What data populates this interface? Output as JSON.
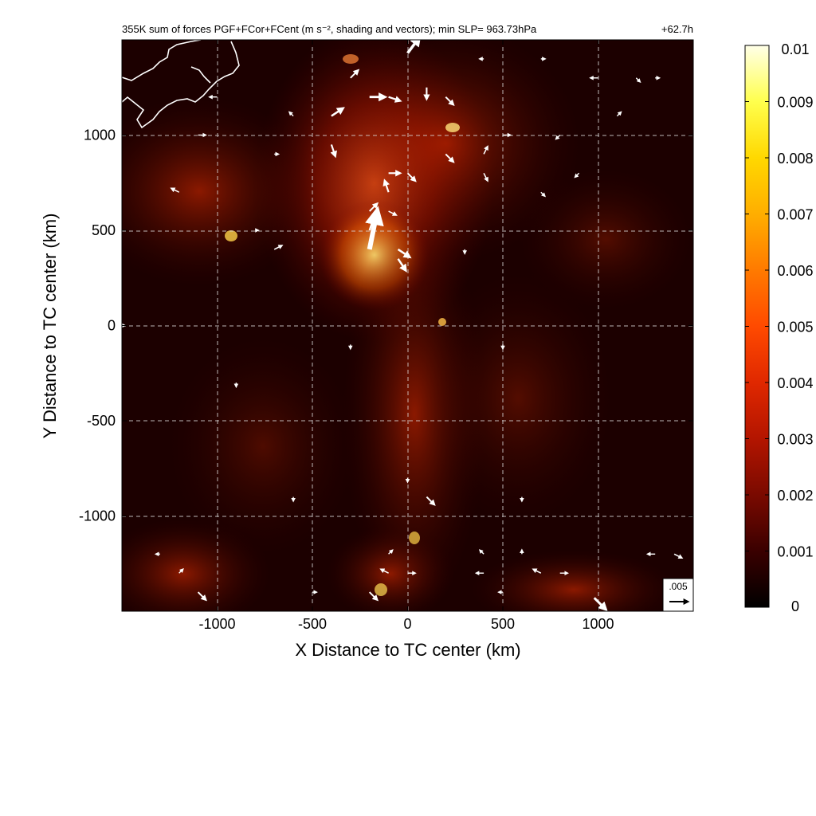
{
  "chart_data": {
    "type": "heatmap",
    "title": "355K sum of forces PGF+FCor+FCent (m s⁻², shading and vectors); min SLP= 963.73hPa",
    "title_right": "+62.7h",
    "xlabel": "X Distance to TC center (km)",
    "ylabel": "Y Distance to TC center (km)",
    "xlim": [
      -1500,
      1500
    ],
    "ylim": [
      -1500,
      1500
    ],
    "xticks": [
      -1000,
      -500,
      0,
      500,
      1000
    ],
    "xtick_labels": [
      "-1000",
      "-500",
      "0",
      "500",
      "1000"
    ],
    "yticks": [
      -1000,
      -500,
      0,
      500,
      1000
    ],
    "ytick_labels": [
      "-1000",
      "-500",
      "0",
      "500",
      "1000"
    ],
    "grid": true,
    "grid_style": "dashed",
    "colorbar": {
      "min": 0,
      "max": 0.01,
      "ticks": [
        0,
        0.001,
        0.002,
        0.003,
        0.004,
        0.005,
        0.006,
        0.007,
        0.008,
        0.009,
        0.01
      ],
      "tick_labels": [
        "0",
        "0.001",
        "0.002",
        "0.003",
        "0.004",
        "0.005",
        "0.006",
        "0.007",
        "0.008",
        "0.009",
        "0.01"
      ],
      "colors": [
        "#000000",
        "#3a0000",
        "#7a0a00",
        "#b31500",
        "#e02800",
        "#ff4a00",
        "#ff7a00",
        "#ffae00",
        "#ffd800",
        "#ffff4d",
        "#ffffe8"
      ]
    },
    "reference_vector": {
      "label": ".005",
      "magnitude": 0.005
    },
    "vectors": [
      {
        "x": 0,
        "y": 1430,
        "u": 0.003,
        "v": 0.004
      },
      {
        "x": -300,
        "y": 1300,
        "u": 0.002,
        "v": 0.002
      },
      {
        "x": -200,
        "y": 1200,
        "u": 0.004,
        "v": 0.0
      },
      {
        "x": -100,
        "y": 1200,
        "u": 0.003,
        "v": -0.001
      },
      {
        "x": 100,
        "y": 1250,
        "u": 0.0,
        "v": -0.003
      },
      {
        "x": 200,
        "y": 1200,
        "u": 0.002,
        "v": -0.002
      },
      {
        "x": -400,
        "y": 1100,
        "u": 0.003,
        "v": 0.002
      },
      {
        "x": -400,
        "y": 950,
        "u": 0.001,
        "v": -0.003
      },
      {
        "x": -100,
        "y": 800,
        "u": 0.003,
        "v": 0.0
      },
      {
        "x": 0,
        "y": 800,
        "u": 0.002,
        "v": -0.002
      },
      {
        "x": -100,
        "y": 700,
        "u": -0.001,
        "v": 0.003
      },
      {
        "x": -200,
        "y": 600,
        "u": 0.002,
        "v": 0.002
      },
      {
        "x": -100,
        "y": 600,
        "u": 0.002,
        "v": -0.001
      },
      {
        "x": -200,
        "y": 500,
        "u": 0.001,
        "v": 0.003
      },
      {
        "x": -200,
        "y": 400,
        "u": 0.002,
        "v": 0.01
      },
      {
        "x": -50,
        "y": 400,
        "u": 0.003,
        "v": -0.002
      },
      {
        "x": -50,
        "y": 350,
        "u": 0.002,
        "v": -0.003
      },
      {
        "x": 200,
        "y": 900,
        "u": 0.002,
        "v": -0.002
      },
      {
        "x": 400,
        "y": 900,
        "u": 0.001,
        "v": 0.002
      },
      {
        "x": 400,
        "y": 800,
        "u": 0.001,
        "v": -0.002
      },
      {
        "x": -1000,
        "y": 1200,
        "u": -0.002,
        "v": 0.0
      },
      {
        "x": -1100,
        "y": 1000,
        "u": 0.002,
        "v": 0.0
      },
      {
        "x": -1200,
        "y": 700,
        "u": -0.002,
        "v": 0.001
      },
      {
        "x": -800,
        "y": 500,
        "u": 0.0,
        "v": 0.0
      },
      {
        "x": -700,
        "y": 400,
        "u": 0.002,
        "v": 0.001
      },
      {
        "x": 1000,
        "y": 1300,
        "u": -0.002,
        "v": 0.0
      },
      {
        "x": 1200,
        "y": 1300,
        "u": 0.001,
        "v": -0.001
      },
      {
        "x": 1100,
        "y": 1100,
        "u": 0.001,
        "v": 0.001
      },
      {
        "x": 800,
        "y": 1000,
        "u": -0.001,
        "v": -0.001
      },
      {
        "x": 1300,
        "y": 1300,
        "u": 0.001,
        "v": 0.0
      },
      {
        "x": 500,
        "y": 1000,
        "u": 0.002,
        "v": 0.0
      },
      {
        "x": 700,
        "y": 700,
        "u": 0.001,
        "v": -0.001
      },
      {
        "x": 100,
        "y": -900,
        "u": 0.002,
        "v": -0.002
      },
      {
        "x": 0,
        "y": -800,
        "u": 0.0,
        "v": -0.001
      },
      {
        "x": -1100,
        "y": -1400,
        "u": 0.002,
        "v": -0.002
      },
      {
        "x": -1200,
        "y": -1300,
        "u": 0.001,
        "v": 0.001
      },
      {
        "x": -1300,
        "y": -1200,
        "u": -0.001,
        "v": 0.0
      },
      {
        "x": -200,
        "y": -1400,
        "u": 0.002,
        "v": -0.002
      },
      {
        "x": -100,
        "y": -1300,
        "u": -0.002,
        "v": 0.001
      },
      {
        "x": -100,
        "y": -1200,
        "u": 0.001,
        "v": 0.001
      },
      {
        "x": 0,
        "y": -1300,
        "u": 0.002,
        "v": 0.0
      },
      {
        "x": 400,
        "y": -1300,
        "u": -0.002,
        "v": 0.0
      },
      {
        "x": 400,
        "y": -1200,
        "u": -0.001,
        "v": 0.001
      },
      {
        "x": 600,
        "y": -1200,
        "u": 0.0,
        "v": 0.001
      },
      {
        "x": 700,
        "y": -1300,
        "u": -0.002,
        "v": 0.001
      },
      {
        "x": 800,
        "y": -1300,
        "u": 0.002,
        "v": 0.0
      },
      {
        "x": 980,
        "y": -1430,
        "u": 0.003,
        "v": -0.003
      },
      {
        "x": 1300,
        "y": -1200,
        "u": -0.002,
        "v": 0.0
      },
      {
        "x": 1400,
        "y": -1200,
        "u": 0.002,
        "v": -0.001
      },
      {
        "x": -1500,
        "y": 0,
        "u": 0.0,
        "v": 0.0
      },
      {
        "x": 500,
        "y": -100,
        "u": 0.0,
        "v": -0.001
      },
      {
        "x": -300,
        "y": -100,
        "u": 0.0,
        "v": -0.001
      },
      {
        "x": -900,
        "y": -300,
        "u": 0.0,
        "v": -0.001
      },
      {
        "x": 700,
        "y": 1400,
        "u": 0.001,
        "v": 0.0
      },
      {
        "x": 400,
        "y": 1400,
        "u": -0.001,
        "v": 0.0
      },
      {
        "x": -600,
        "y": 1100,
        "u": -0.001,
        "v": 0.001
      },
      {
        "x": -700,
        "y": 900,
        "u": 0.001,
        "v": 0.0
      },
      {
        "x": 900,
        "y": 800,
        "u": -0.001,
        "v": -0.001
      },
      {
        "x": 300,
        "y": 400,
        "u": 0.0,
        "v": -0.001
      },
      {
        "x": -600,
        "y": -900,
        "u": 0.0,
        "v": -0.001
      },
      {
        "x": 600,
        "y": -900,
        "u": 0.0,
        "v": -0.001
      },
      {
        "x": -500,
        "y": -1400,
        "u": 0.001,
        "v": 0.0
      },
      {
        "x": 500,
        "y": -1400,
        "u": -0.001,
        "v": 0.0
      }
    ]
  }
}
